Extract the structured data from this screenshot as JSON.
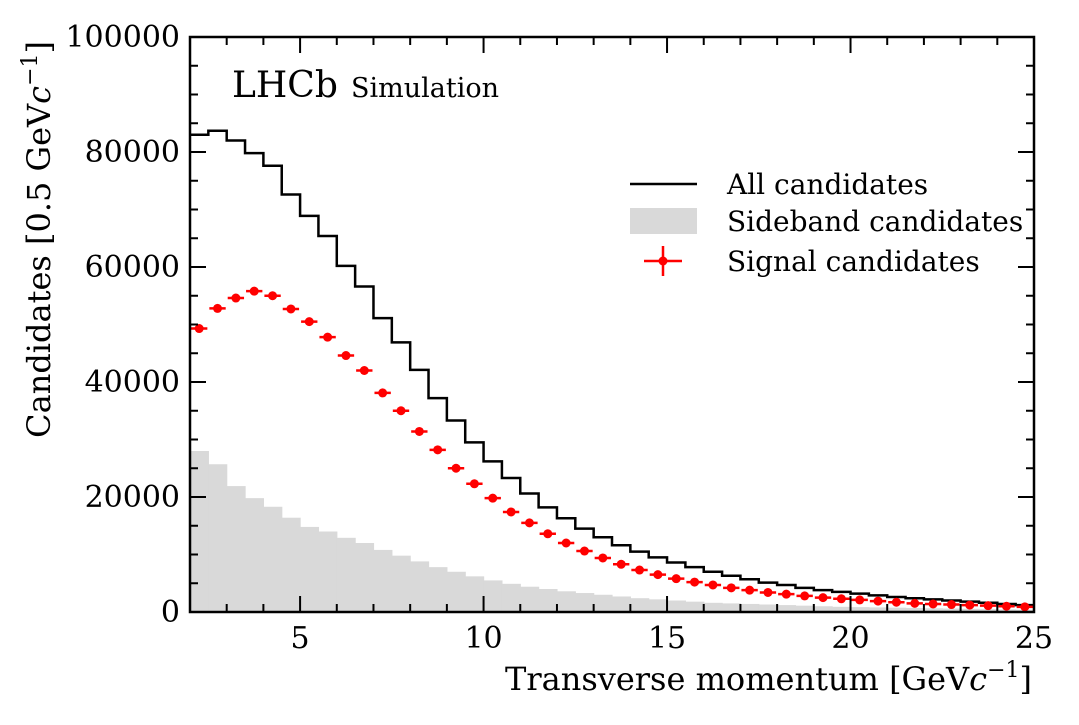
{
  "chart_data": {
    "type": "bar",
    "title": "",
    "logo_main": "LHCb",
    "logo_sub": "Simulation",
    "xlabel": "Transverse momentum [GeV",
    "ylabel": "Candidates [0.5 GeV",
    "unit_c": "c",
    "unit_exp": "−1",
    "xlim": [
      2,
      25
    ],
    "ylim": [
      0,
      100000
    ],
    "x_ticks": [
      5,
      10,
      15,
      20,
      25
    ],
    "y_ticks": [
      0,
      20000,
      40000,
      60000,
      80000,
      100000
    ],
    "legend_position": "right",
    "bin_width": 0.5,
    "bin_edges_start": 2,
    "series": [
      {
        "name": "All candidates",
        "style": "step",
        "color": "#000000",
        "values": [
          83000,
          83700,
          82000,
          79800,
          77600,
          72600,
          68900,
          65400,
          60200,
          56600,
          51100,
          46900,
          42100,
          37200,
          33300,
          29500,
          26200,
          23300,
          20600,
          18200,
          16300,
          14500,
          13000,
          11600,
          10500,
          9500,
          8600,
          7800,
          7000,
          6300,
          5700,
          5100,
          4700,
          4200,
          3800,
          3500,
          3200,
          2900,
          2600,
          2400,
          2200,
          2000,
          1800,
          1600,
          1400,
          1200
        ]
      },
      {
        "name": "Sideband candidates",
        "style": "fill",
        "color": "#d9d9d9",
        "values": [
          28000,
          25700,
          21900,
          19800,
          18300,
          16400,
          14800,
          14000,
          12900,
          12000,
          10800,
          9800,
          8800,
          7800,
          7000,
          6200,
          5500,
          4900,
          4400,
          4000,
          3600,
          3300,
          3000,
          2700,
          2400,
          2200,
          2000,
          1800,
          1600,
          1500,
          1400,
          1300,
          1200,
          1100,
          1000,
          900,
          850,
          800,
          750,
          700,
          650,
          600,
          550,
          500,
          450,
          400
        ]
      },
      {
        "name": "Signal candidates",
        "style": "errorbar",
        "color": "#ff0000",
        "values": [
          49300,
          52800,
          54600,
          55800,
          55000,
          52700,
          50500,
          47800,
          44600,
          42000,
          38100,
          35000,
          31400,
          28200,
          25000,
          22300,
          19800,
          17400,
          15500,
          13600,
          12000,
          10600,
          9400,
          8300,
          7300,
          6500,
          5800,
          5200,
          4700,
          4200,
          3800,
          3400,
          3100,
          2800,
          2500,
          2300,
          2100,
          1900,
          1700,
          1500,
          1400,
          1300,
          1200,
          1100,
          1000,
          900
        ]
      }
    ]
  }
}
